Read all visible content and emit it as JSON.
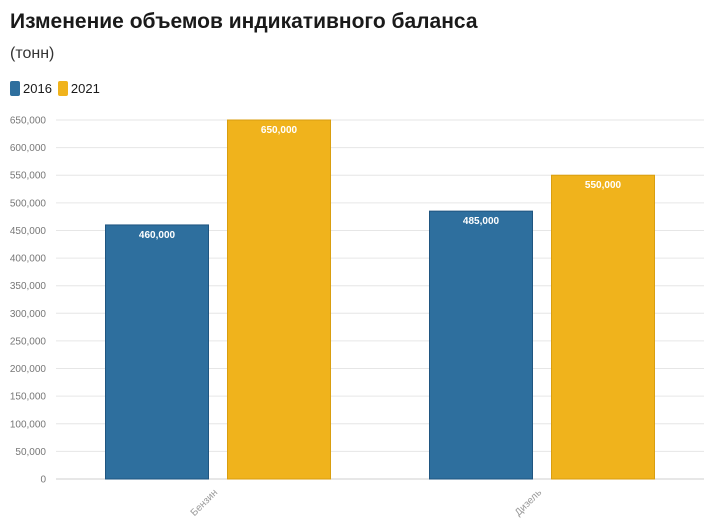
{
  "chart_data": {
    "type": "bar",
    "title": "Изменение объемов индикативного баланса",
    "subtitle": "(тонн)",
    "categories": [
      "Бензин",
      "Дизель"
    ],
    "series": [
      {
        "name": "2016",
        "color": "#2e6f9e",
        "values": [
          460000,
          485000
        ],
        "labels": [
          "460,000",
          "485,000"
        ]
      },
      {
        "name": "2021",
        "color": "#f0b31c",
        "values": [
          650000,
          550000
        ],
        "labels": [
          "650,000",
          "550,000"
        ]
      }
    ],
    "ylim": [
      0,
      650000
    ],
    "y_ticks": [
      0,
      50000,
      100000,
      150000,
      200000,
      250000,
      300000,
      350000,
      400000,
      450000,
      500000,
      550000,
      600000,
      650000
    ],
    "y_tick_labels": [
      "0",
      "50,000",
      "100,000",
      "150,000",
      "200,000",
      "250,000",
      "300,000",
      "350,000",
      "400,000",
      "450,000",
      "500,000",
      "550,000",
      "600,000",
      "650,000"
    ],
    "xlabel": "",
    "ylabel": "",
    "grid": true,
    "legend_position": "top-left"
  }
}
